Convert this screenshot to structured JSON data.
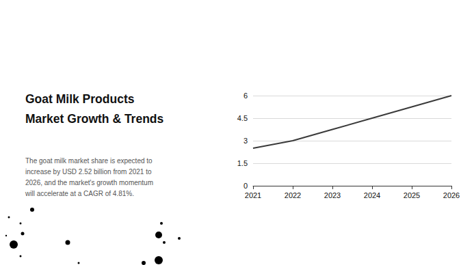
{
  "heading": [
    "Goat Milk Products",
    "Market Growth & Trends"
  ],
  "paragraph": [
    "The goat milk market share is expected to",
    "increase by USD 2.52 billion from 2021 to",
    "2026, and the market's growth momentum",
    "will accelerate at a CAGR of 4.81%."
  ],
  "chart_data": {
    "type": "line",
    "categories": [
      "2021",
      "2022",
      "2023",
      "2024",
      "2025",
      "2026"
    ],
    "values": [
      2.5,
      3.0,
      3.75,
      4.5,
      5.25,
      6.0
    ],
    "color": "#3a3a3a",
    "ylim": [
      0,
      6
    ],
    "yticks": [
      0,
      1.5,
      3,
      4.5,
      6
    ],
    "grid": true
  }
}
